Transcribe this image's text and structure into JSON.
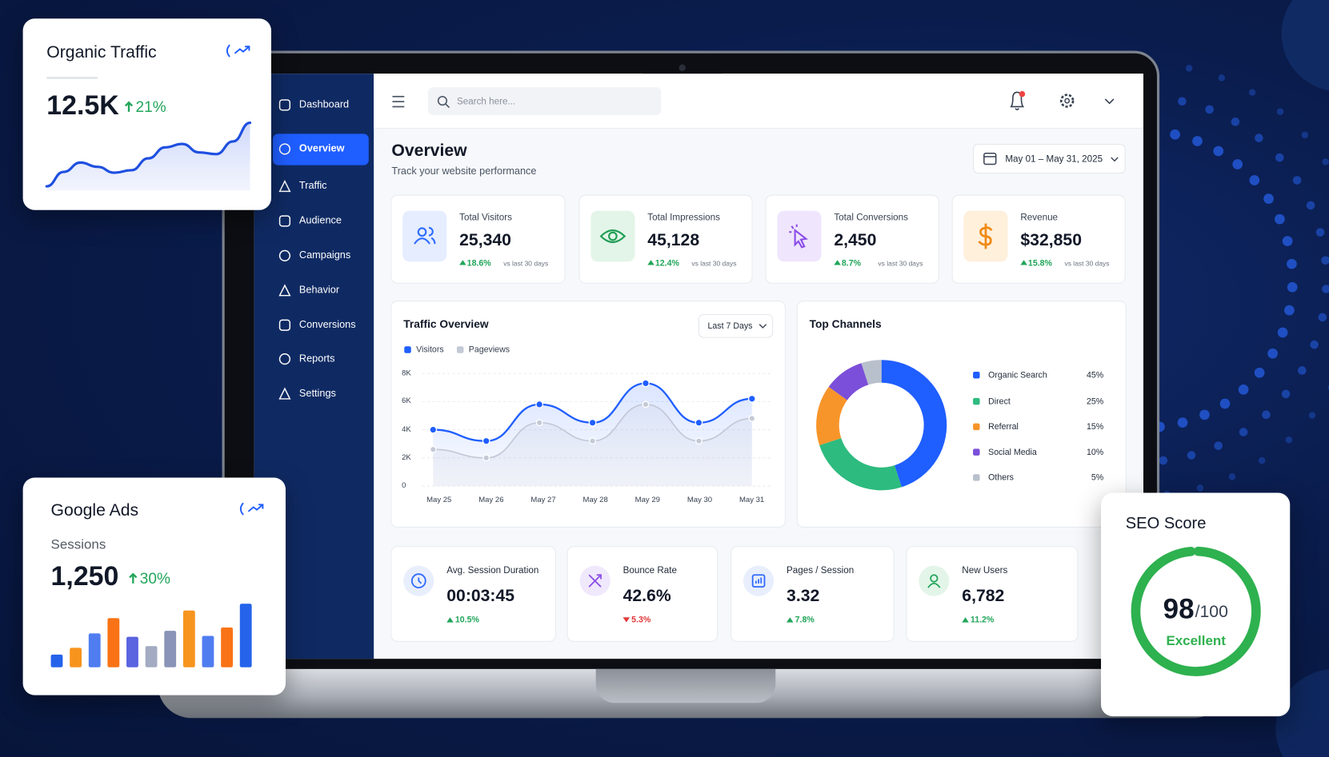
{
  "sidebar": {
    "items": [
      "Dashboard",
      "Overview",
      "Traffic",
      "Audience",
      "Campaigns",
      "Behavior",
      "Conversions",
      "Reports",
      "Settings"
    ],
    "active": 1
  },
  "header": {
    "search_placeholder": "Search here..."
  },
  "overview": {
    "title": "Overview",
    "subtitle": "Track your website performance",
    "date_range": "May 01 – May 31, 2025"
  },
  "kpis": {
    "comparison": "vs last 30 days",
    "cards": [
      {
        "label": "Total Visitors",
        "value": "25,340",
        "change": "18.6%",
        "color": "#2f6bff",
        "background": "#e5edff"
      },
      {
        "label": "Total Impressions",
        "value": "45,128",
        "change": "12.4%",
        "color": "#1f9d55",
        "background": "#e2f5e8"
      },
      {
        "label": "Total Conversions",
        "value": "2,450",
        "change": "8.7%",
        "color": "#8a4de8",
        "background": "#efe6fd"
      },
      {
        "label": "Revenue",
        "value": "$32,850",
        "change": "15.8%",
        "color": "#f08a14",
        "background": "#fff0dc"
      }
    ]
  },
  "traffic_overview": {
    "type": "line",
    "title": "Traffic Overview",
    "range_button": "Last 7 Days",
    "categories": [
      "May 25",
      "May 26",
      "May 27",
      "May 28",
      "May 29",
      "May 30",
      "May 31"
    ],
    "series": [
      {
        "name": "Visitors",
        "color": "#1f5eff",
        "values": [
          4000,
          3200,
          5800,
          4500,
          7300,
          4500,
          6200
        ]
      },
      {
        "name": "Pageviews",
        "color": "#c3c9d6",
        "values": [
          2600,
          2000,
          4500,
          3200,
          5800,
          3200,
          4800
        ]
      }
    ],
    "ylim": [
      0,
      8000
    ],
    "yticks": [
      0,
      {
        "value": 2000,
        "label": "2K"
      },
      {
        "value": 4000,
        "label": "4K"
      },
      {
        "value": 6000,
        "label": "6K"
      },
      {
        "value": 8000,
        "label": "8K"
      }
    ],
    "grid": true
  },
  "top_channels": {
    "type": "donut",
    "title": "Top Channels",
    "categories": [
      "Organic Search",
      "Direct",
      "Referral",
      "Social Media",
      "Others"
    ],
    "values": [
      45,
      25,
      15,
      10,
      5
    ],
    "value_labels": [
      "45%",
      "25%",
      "15%",
      "10%",
      "5%"
    ],
    "colors": [
      "#1f5eff",
      "#2dbb7f",
      "#f7952a",
      "#7b4fd9",
      "#b8c0cc"
    ]
  },
  "metrics": [
    {
      "label": "Avg. Session Duration",
      "value": "00:03:45",
      "change": "10.5%",
      "direction": "up",
      "color": "#2f6bff",
      "background": "#e8eefc"
    },
    {
      "label": "Bounce Rate",
      "value": "42.6%",
      "change": "5.3%",
      "direction": "down",
      "color": "#8a4de8",
      "background": "#f0e8fc"
    },
    {
      "label": "Pages / Session",
      "value": "3.32",
      "change": "7.8%",
      "direction": "up",
      "color": "#2f6bff",
      "background": "#e8eefc"
    },
    {
      "label": "New Users",
      "value": "6,782",
      "change": "11.2%",
      "direction": "up",
      "color": "#22a55a",
      "background": "#e3f5e9"
    }
  ],
  "organic_traffic": {
    "title": "Organic Traffic",
    "value": "12.5K",
    "change": "21%",
    "color": "#1e4fe0",
    "trend": [
      5,
      22,
      33,
      28,
      21,
      24,
      38,
      51,
      55,
      45,
      43,
      58,
      80
    ]
  },
  "google_ads": {
    "title": "Google Ads",
    "label": "Sessions",
    "value": "1,250",
    "change": "30%",
    "bars": [
      15,
      23,
      40,
      58,
      36,
      25,
      43,
      67,
      37,
      47,
      75
    ],
    "bar_colors": [
      "#2563eb",
      "#f7941d",
      "#4f7df0",
      "#f97316",
      "#5a63e0",
      "#a3abc2",
      "#8a94b8",
      "#f7941d",
      "#4f7df0",
      "#f97316",
      "#2563eb"
    ]
  },
  "seo_score": {
    "title": "SEO Score",
    "score": 98,
    "max": {
      "value": 100,
      "label": "/100"
    },
    "rating": "Excellent",
    "color": "#2eb14f"
  }
}
